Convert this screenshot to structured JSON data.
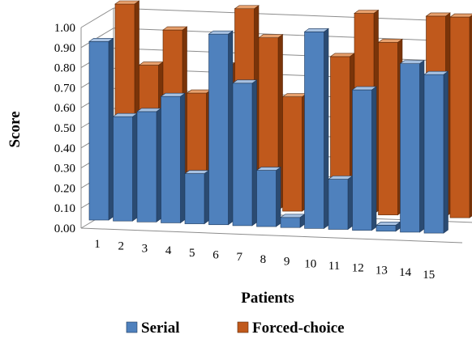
{
  "chart_data": {
    "type": "bar",
    "subtype": "3d-clustered-depth",
    "categories": [
      "1",
      "2",
      "3",
      "4",
      "5",
      "6",
      "7",
      "8",
      "9",
      "10",
      "11",
      "12",
      "13",
      "14",
      "15"
    ],
    "series": [
      {
        "name": "Serial",
        "values": [
          0.89,
          0.52,
          0.55,
          0.63,
          0.25,
          0.95,
          0.71,
          0.28,
          0.05,
          0.98,
          0.25,
          0.7,
          0.03,
          0.84,
          0.79
        ]
      },
      {
        "name": "Forced-choice",
        "values": [
          1.0,
          0.7,
          0.88,
          0.57,
          0.71,
          1.0,
          0.86,
          0.57,
          0.02,
          0.78,
          1.0,
          0.86,
          0.03,
          1.0,
          1.0
        ]
      }
    ],
    "xlabel": "Patients",
    "ylabel": "Score",
    "ylim": [
      0,
      1
    ],
    "yticks": [
      "0.00",
      "0.10",
      "0.20",
      "0.30",
      "0.40",
      "0.50",
      "0.60",
      "0.70",
      "0.80",
      "0.90",
      "1.00"
    ],
    "grid": true,
    "legend": "bottom",
    "colors": {
      "Serial": "#4f81bd",
      "Forced-choice": "#c0591c"
    }
  }
}
